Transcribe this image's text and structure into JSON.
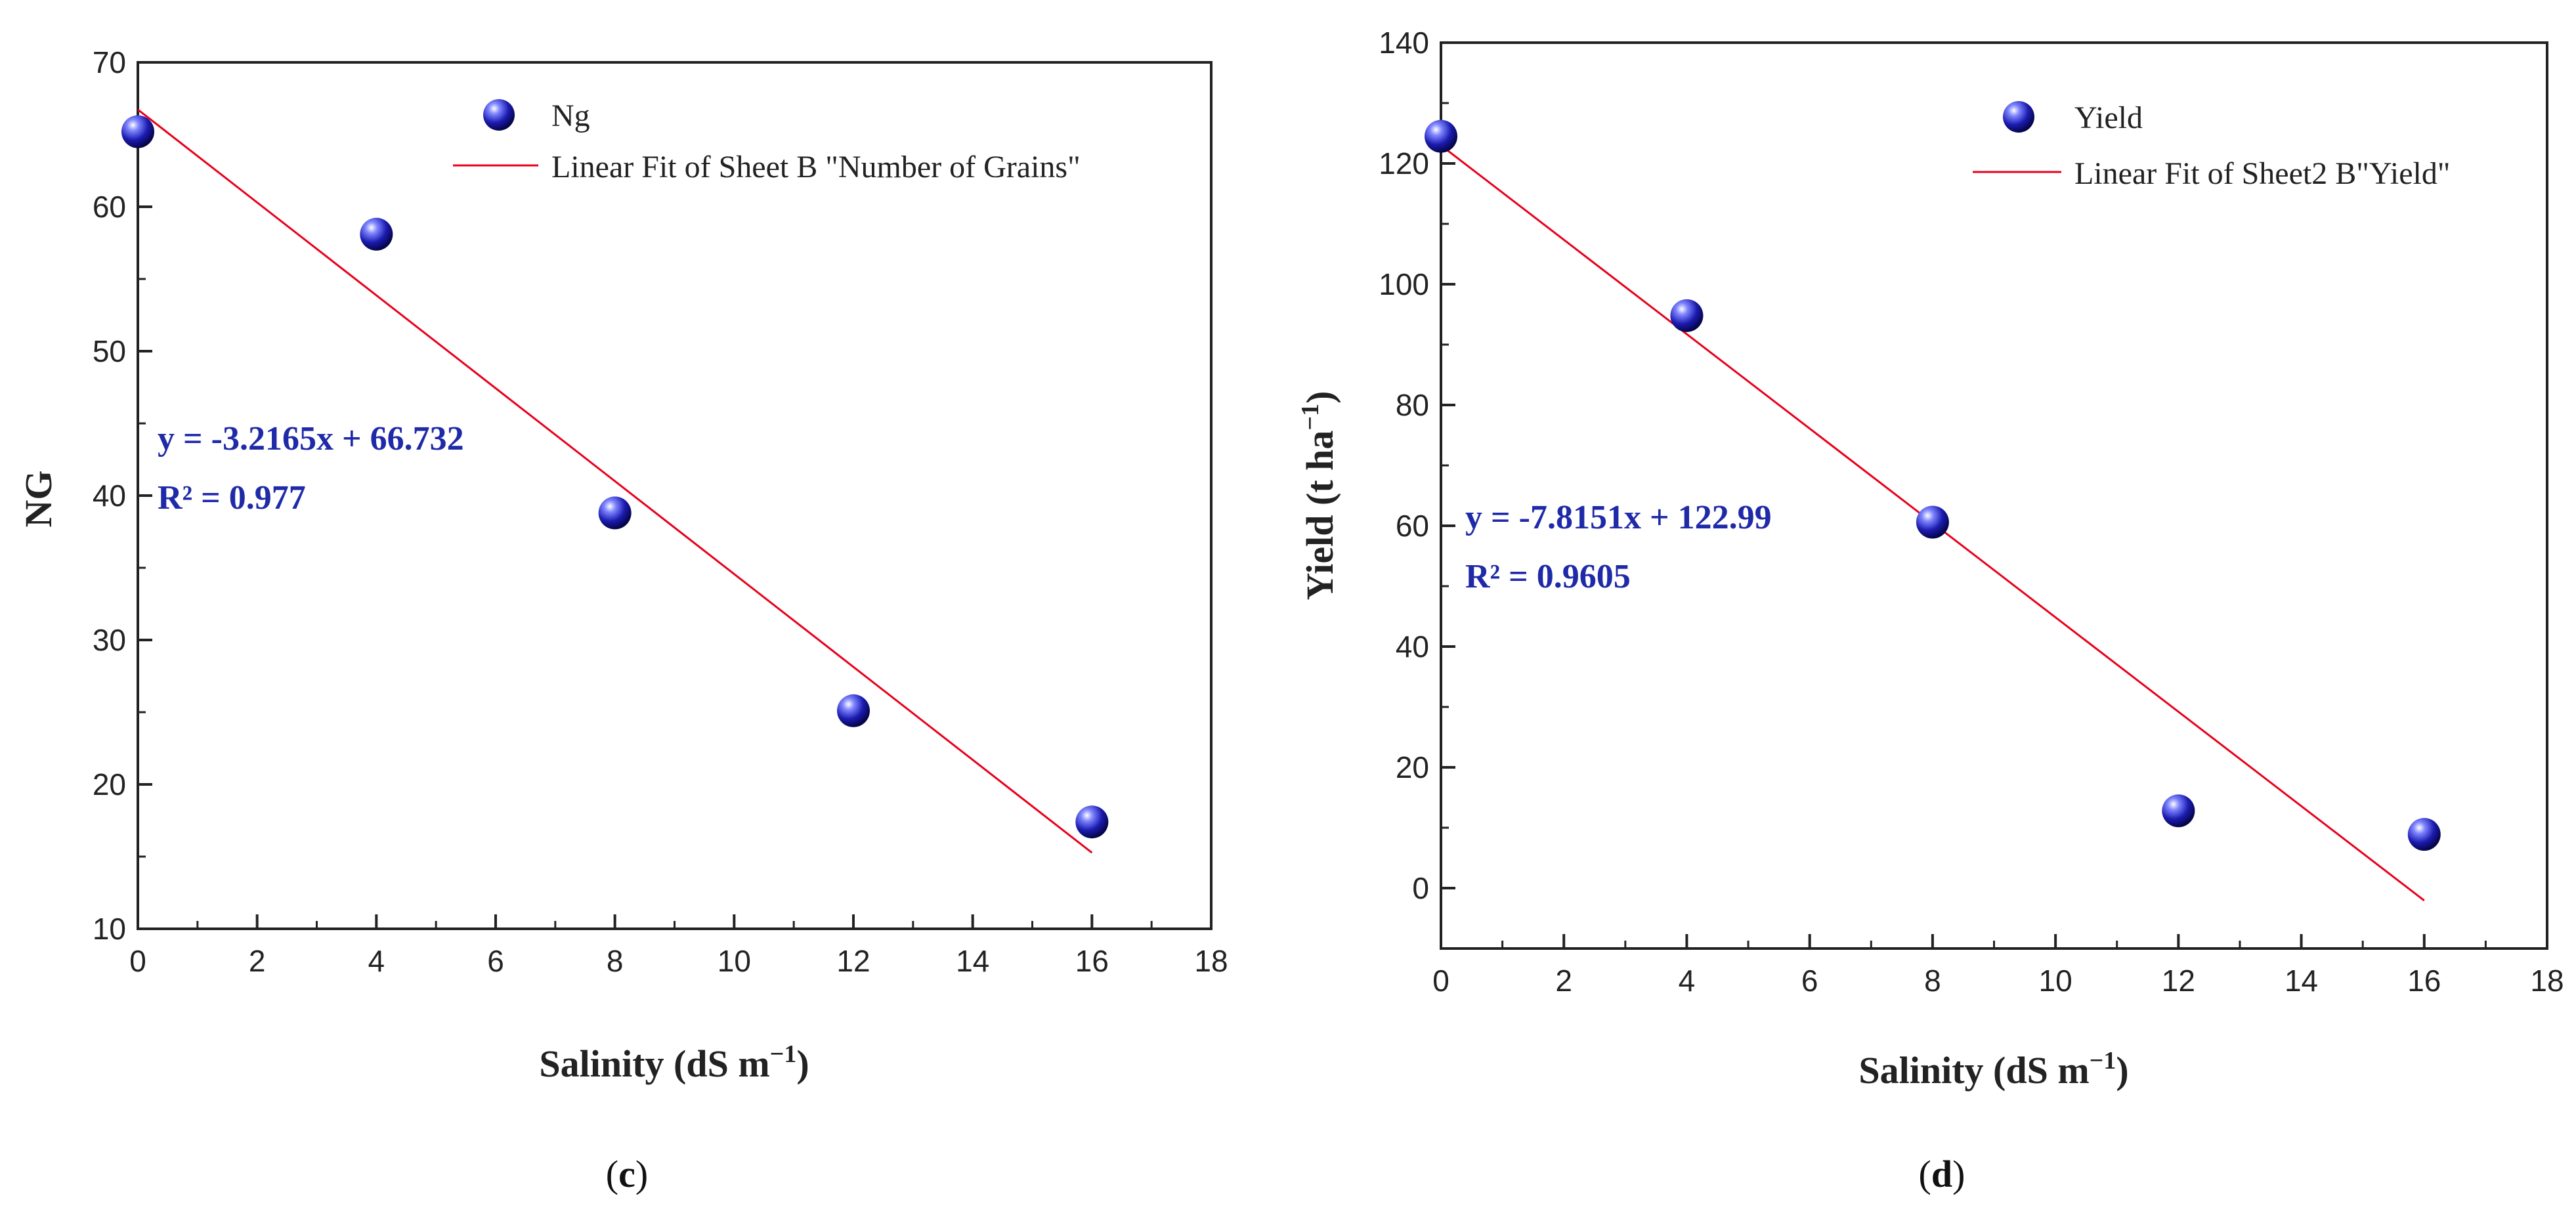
{
  "colors": {
    "fit_line": "#e8001c",
    "equation": "#1f2aa8",
    "marker": "#1b1bb0"
  },
  "chart_data": [
    {
      "type": "scatter",
      "panel": "(c)",
      "panel_letter": "c",
      "xlabel": "Salinity (dS m",
      "xlabel_sup": "−1",
      "xlabel_suffix": ")",
      "ylabel": "NG",
      "xlim": [
        0,
        18
      ],
      "ylim": [
        10,
        70
      ],
      "xticks": [
        0,
        2,
        4,
        6,
        8,
        10,
        12,
        14,
        16,
        18
      ],
      "yticks": [
        10,
        20,
        30,
        40,
        50,
        60,
        70
      ],
      "series": [
        {
          "name": "Ng",
          "x": [
            0,
            4,
            8,
            12,
            16
          ],
          "y": [
            65.2,
            58.1,
            38.8,
            25.1,
            17.4
          ]
        }
      ],
      "fit": {
        "name": "Linear Fit of Sheet B \"Number of Grains\"",
        "slope": -3.2165,
        "intercept": 66.732,
        "x_range": [
          0,
          16
        ]
      },
      "equation": "y = -3.2165x + 66.732",
      "r2": "R² = 0.977"
    },
    {
      "type": "scatter",
      "panel": "(d)",
      "panel_letter": "d",
      "xlabel": "Salinity (dS m",
      "xlabel_sup": "−1",
      "xlabel_suffix": ")",
      "ylabel": "Yield (t ha",
      "ylabel_sup": "−1",
      "ylabel_suffix": ")",
      "xlim": [
        0,
        18
      ],
      "ylim": [
        -10,
        140
      ],
      "xticks": [
        0,
        2,
        4,
        6,
        8,
        10,
        12,
        14,
        16,
        18
      ],
      "yticks": [
        0,
        20,
        40,
        60,
        80,
        100,
        120,
        140
      ],
      "series": [
        {
          "name": "Yield",
          "x": [
            0,
            4,
            8,
            12,
            16
          ],
          "y": [
            124.5,
            94.8,
            60.6,
            12.8,
            8.9
          ]
        }
      ],
      "fit": {
        "name": "Linear Fit of Sheet2 B\"Yield\"",
        "slope": -7.8151,
        "intercept": 122.99,
        "x_range": [
          0,
          16
        ]
      },
      "equation": "y = -7.8151x + 122.99",
      "r2": "R² = 0.9605"
    }
  ]
}
